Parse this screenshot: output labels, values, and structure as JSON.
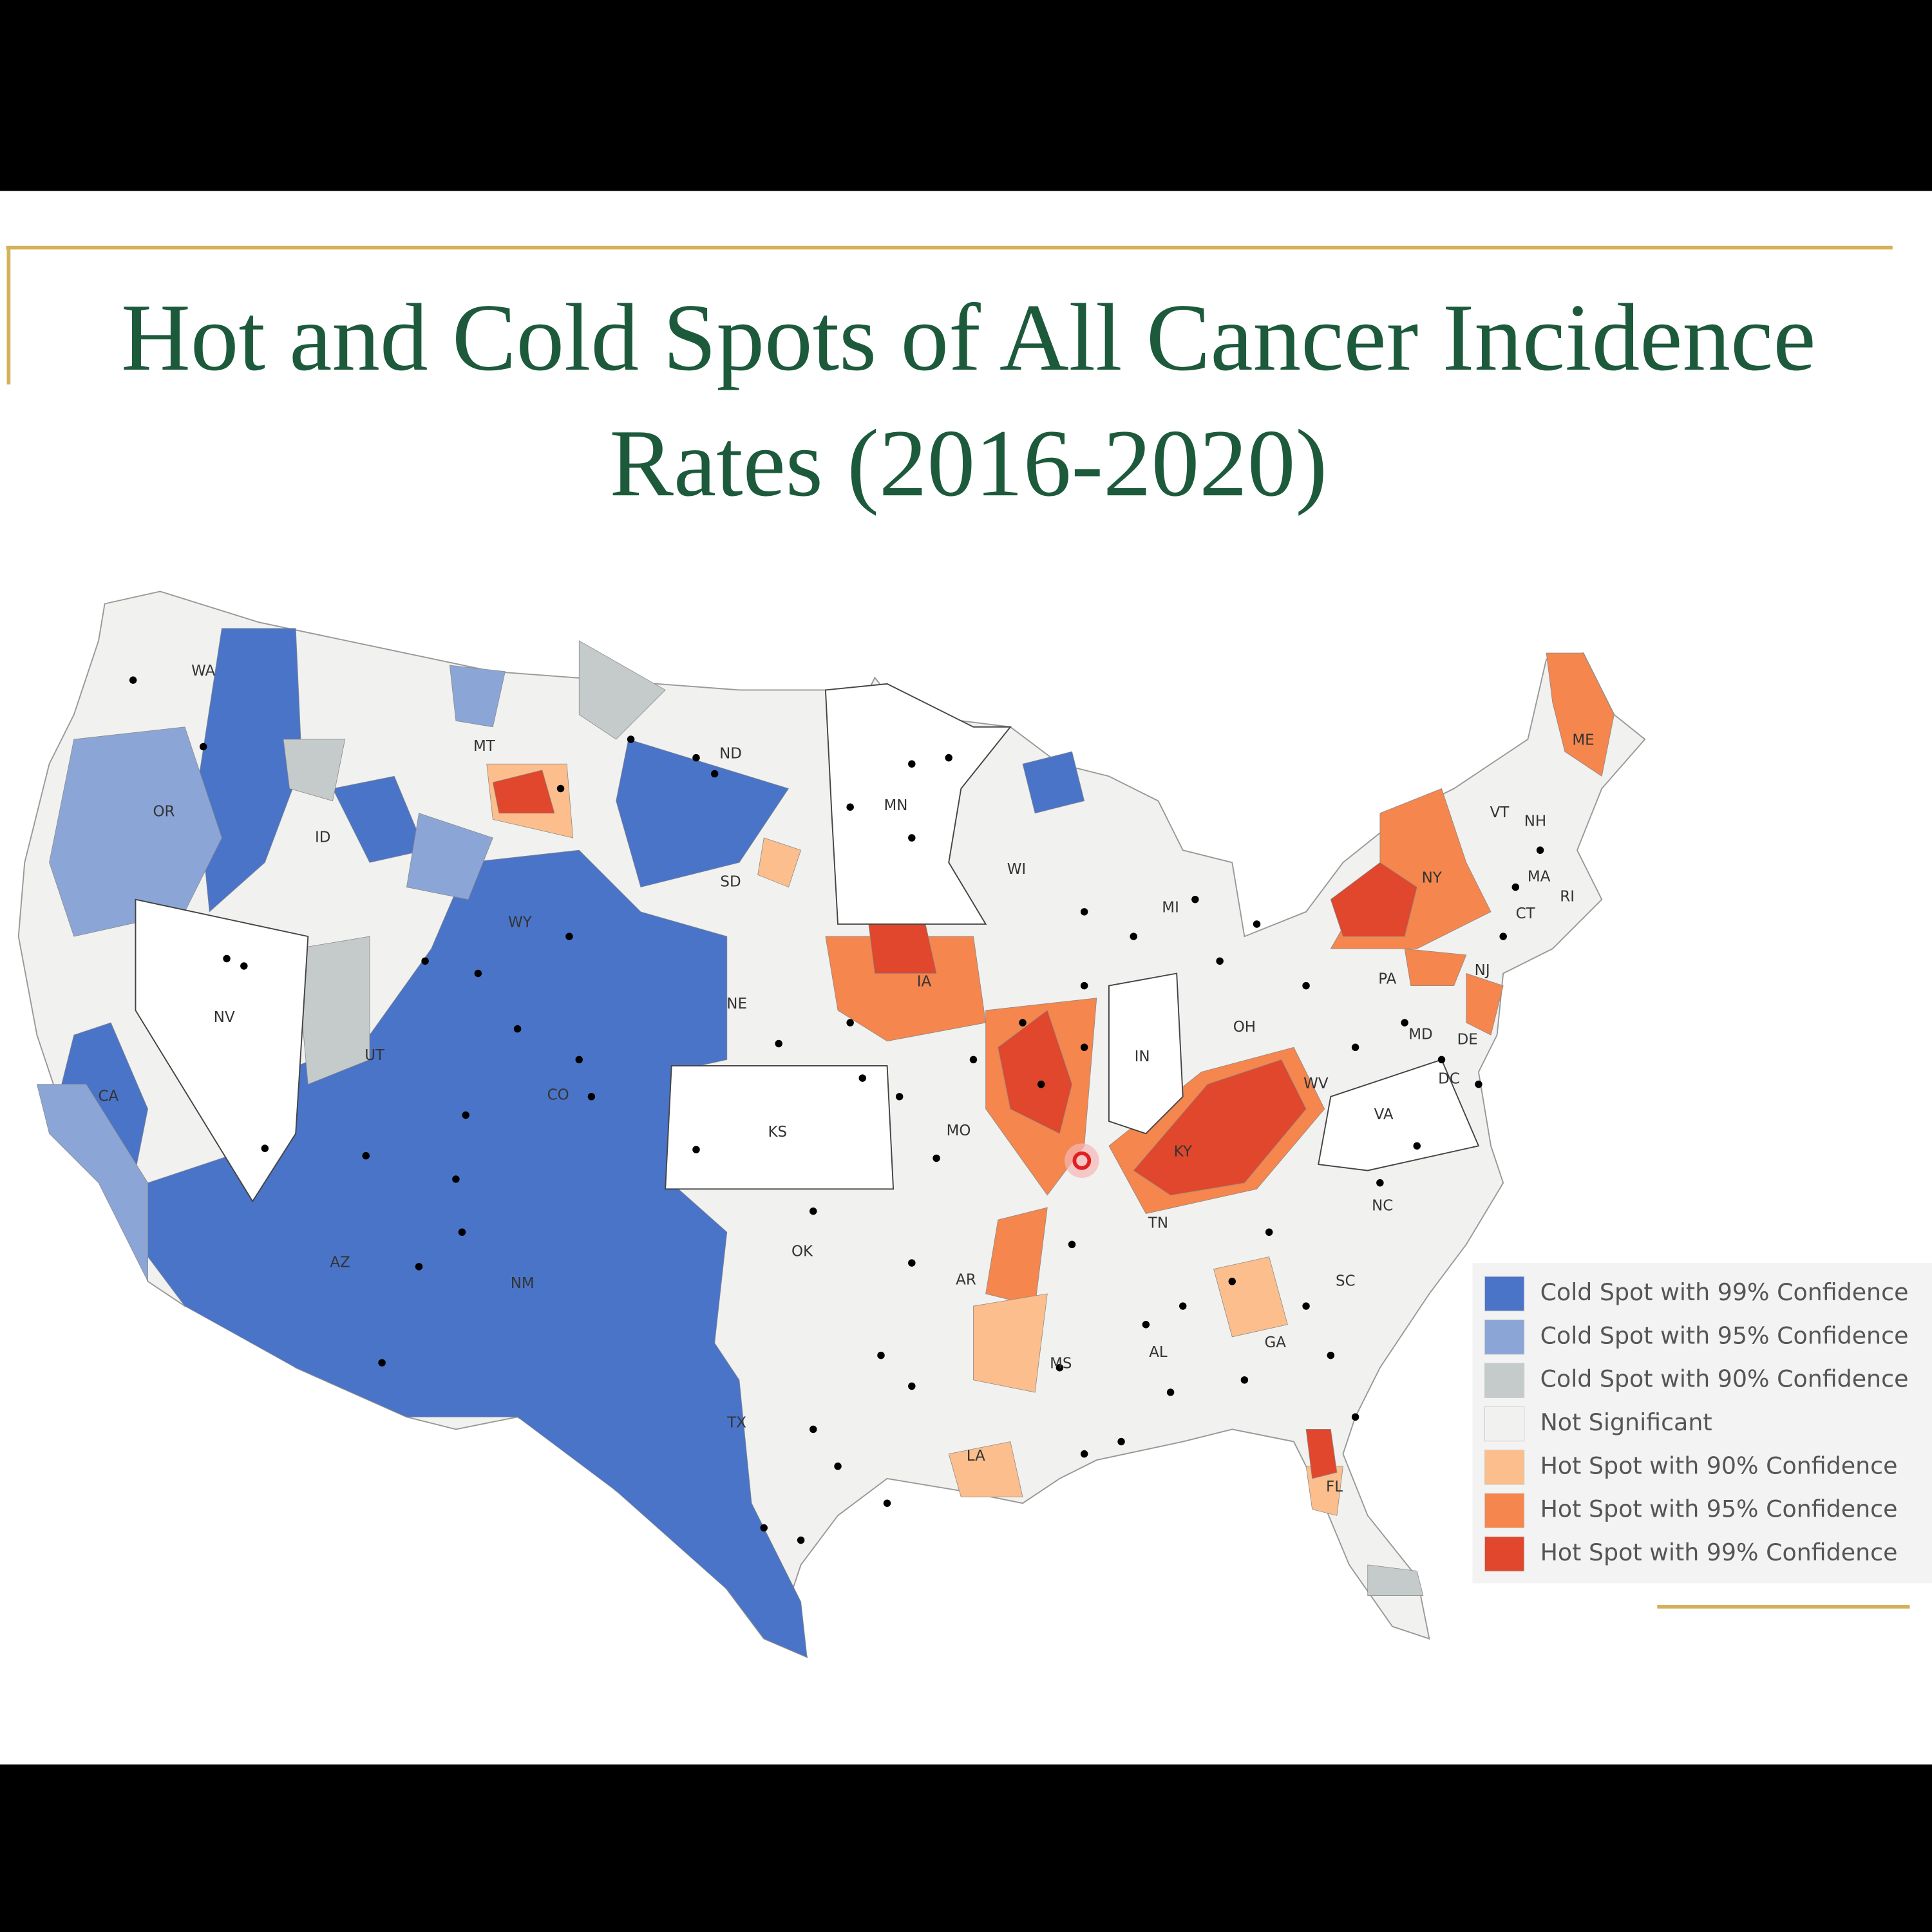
{
  "slide": {
    "title_lines": [
      "Hot and Cold Spots of All Cancer Incidence",
      "Rates (2016-2020)"
    ]
  },
  "map": {
    "state_labels": [
      "WA",
      "MT",
      "ND",
      "MN",
      "OR",
      "ID",
      "SD",
      "WY",
      "NV",
      "NE",
      "IA",
      "UT",
      "CO",
      "CA",
      "KS",
      "MO",
      "IN",
      "WI",
      "MI",
      "OH",
      "WV",
      "VA",
      "KY",
      "TN",
      "NC",
      "OK",
      "AR",
      "AZ",
      "NM",
      "SC",
      "MS",
      "AL",
      "GA",
      "TX",
      "LA",
      "FL",
      "PA",
      "NY",
      "VT",
      "NH",
      "ME",
      "MA",
      "CT",
      "RI",
      "NJ",
      "MD",
      "DE",
      "DC"
    ],
    "legend": [
      {
        "label": "Cold Spot with 99% Confidence",
        "color": "#4a74c8"
      },
      {
        "label": "Cold Spot with 95% Confidence",
        "color": "#8ba6d6"
      },
      {
        "label": "Cold Spot with 90% Confidence",
        "color": "#c4cbca"
      },
      {
        "label": "Not Significant",
        "color": "#f1f1ef"
      },
      {
        "label": "Hot Spot with 90% Confidence",
        "color": "#fbbe8c"
      },
      {
        "label": "Hot Spot with 95% Confidence",
        "color": "#f4864e"
      },
      {
        "label": "Hot Spot with 99% Confidence",
        "color": "#e0472c"
      }
    ]
  }
}
